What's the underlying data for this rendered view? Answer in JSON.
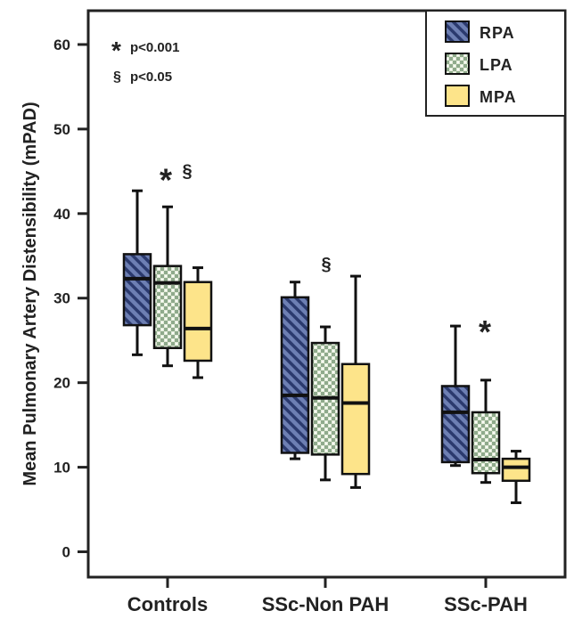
{
  "colors": {
    "RPA": "#4a5a8c",
    "LPA": "#d3e0c9",
    "MPA": "#fde48a"
  },
  "chart_data": {
    "type": "box",
    "ylabel": "Mean Pulmonary Artery Distensibility (mPAD)",
    "ylim": [
      -3,
      64
    ],
    "yticks": [
      0,
      10,
      20,
      30,
      40,
      50,
      60
    ],
    "grid": false,
    "legend_position": "top-right",
    "categories": [
      "Controls",
      "SSc-Non PAH",
      "SSc-PAH"
    ],
    "series": [
      {
        "name": "RPA",
        "pattern": "diagonal-hatch",
        "boxes": [
          {
            "min": 23.3,
            "q1": 26.8,
            "median": 32.3,
            "q3": 35.2,
            "max": 42.7
          },
          {
            "min": 11.0,
            "q1": 11.7,
            "median": 18.5,
            "q3": 30.1,
            "max": 31.9
          },
          {
            "min": 10.2,
            "q1": 10.6,
            "median": 16.5,
            "q3": 19.6,
            "max": 26.7
          }
        ]
      },
      {
        "name": "LPA",
        "pattern": "checkered",
        "boxes": [
          {
            "min": 22.0,
            "q1": 24.1,
            "median": 31.8,
            "q3": 33.8,
            "max": 40.8
          },
          {
            "min": 8.5,
            "q1": 11.5,
            "median": 18.2,
            "q3": 24.7,
            "max": 26.6
          },
          {
            "min": 8.2,
            "q1": 9.3,
            "median": 10.9,
            "q3": 16.5,
            "max": 20.3
          }
        ]
      },
      {
        "name": "MPA",
        "pattern": "solid",
        "boxes": [
          {
            "min": 20.6,
            "q1": 22.6,
            "median": 26.4,
            "q3": 31.9,
            "max": 33.6
          },
          {
            "min": 7.6,
            "q1": 9.2,
            "median": 17.6,
            "q3": 22.2,
            "max": 32.6
          },
          {
            "min": 5.8,
            "q1": 8.4,
            "median": 10.0,
            "q3": 11.0,
            "max": 11.9
          }
        ]
      }
    ],
    "annotations": [
      {
        "text": "*",
        "category": 0,
        "y": 45,
        "size": "large"
      },
      {
        "text": "§",
        "category": 0,
        "y": 45,
        "size": "medium"
      },
      {
        "text": "§",
        "category": 1,
        "y": 34,
        "size": "medium"
      },
      {
        "text": "*",
        "category": 2,
        "y": 27,
        "size": "large"
      }
    ],
    "notes": [
      {
        "symbol": "*",
        "label": "p<0.001"
      },
      {
        "symbol": "§",
        "label": "p<0.05"
      }
    ]
  }
}
